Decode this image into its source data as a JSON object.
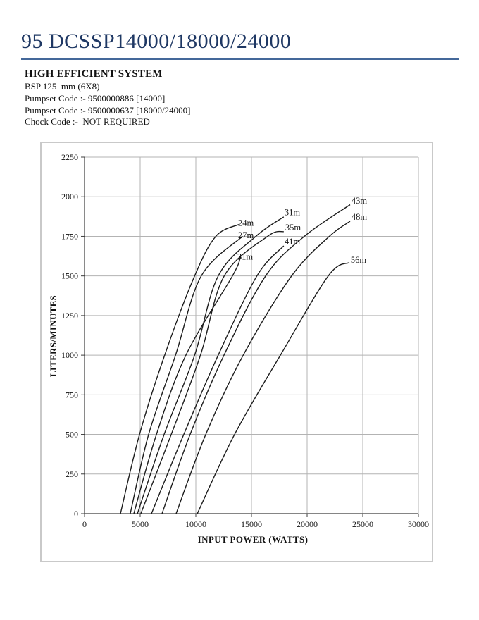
{
  "page": {
    "title": "95 DCSSP14000/18000/24000",
    "title_color": "#1f3864",
    "rule_color": "#44689a",
    "subtitle_heading": "HIGH EFFICIENT SYSTEM",
    "spec_lines": [
      "BSP 125  mm (6X8)",
      "Pumpset Code :- 9500000886 [14000]",
      "Pumpset Code :- 9500000637 [18000/24000]",
      "Chock Code :-  NOT REQUIRED"
    ]
  },
  "chart_data": {
    "type": "line",
    "title": "",
    "xlabel": "INPUT POWER (WATTS)",
    "ylabel": "LITERS/MINUTES",
    "xlim": [
      0,
      30000
    ],
    "ylim": [
      0,
      2250
    ],
    "x_ticks": [
      0,
      5000,
      10000,
      15000,
      20000,
      25000,
      30000
    ],
    "y_ticks": [
      0,
      250,
      500,
      750,
      1000,
      1250,
      1500,
      1750,
      2000,
      2250
    ],
    "grid": true,
    "legend": "none",
    "line_color": "#1c1c1c",
    "grid_color": "#b3b3b3",
    "axis_color": "#3c3c3c",
    "series": [
      {
        "name": "24m",
        "label_at": [
          14500,
          1835
        ],
        "points": [
          [
            3230,
            0
          ],
          [
            4940,
            500
          ],
          [
            7200,
            1000
          ],
          [
            9890,
            1500
          ],
          [
            11800,
            1750
          ],
          [
            13860,
            1825
          ]
        ]
      },
      {
        "name": "27m",
        "label_at": [
          14500,
          1757
        ],
        "points": [
          [
            4110,
            0
          ],
          [
            5760,
            500
          ],
          [
            8180,
            1000
          ],
          [
            10490,
            1500
          ],
          [
            14200,
            1750
          ]
        ]
      },
      {
        "name": "31m",
        "label_at": [
          14430,
          1620
        ],
        "points": [
          [
            4430,
            0
          ],
          [
            6460,
            500
          ],
          [
            9110,
            1000
          ],
          [
            13290,
            1500
          ],
          [
            14000,
            1620
          ]
        ]
      },
      {
        "name": "31m",
        "label_at": [
          18670,
          1900
        ],
        "points": [
          [
            4750,
            0
          ],
          [
            7150,
            500
          ],
          [
            9890,
            1000
          ],
          [
            12010,
            1500
          ],
          [
            15400,
            1750
          ],
          [
            17900,
            1873
          ]
        ]
      },
      {
        "name": "35m",
        "label_at": [
          18730,
          1806
        ],
        "points": [
          [
            5060,
            0
          ],
          [
            7790,
            500
          ],
          [
            10420,
            1000
          ],
          [
            12550,
            1500
          ],
          [
            16450,
            1750
          ],
          [
            17900,
            1780
          ]
        ]
      },
      {
        "name": "41m",
        "label_at": [
          18670,
          1717
        ],
        "points": [
          [
            6010,
            0
          ],
          [
            8920,
            500
          ],
          [
            12010,
            1000
          ],
          [
            15490,
            1500
          ],
          [
            17900,
            1690
          ]
        ]
      },
      {
        "name": "43m",
        "label_at": [
          24680,
          1975
        ],
        "points": [
          [
            6960,
            0
          ],
          [
            9490,
            500
          ],
          [
            12530,
            1000
          ],
          [
            16270,
            1500
          ],
          [
            19750,
            1750
          ],
          [
            23860,
            1950
          ]
        ]
      },
      {
        "name": "48m",
        "label_at": [
          24680,
          1873
        ],
        "points": [
          [
            8230,
            0
          ],
          [
            10890,
            500
          ],
          [
            14260,
            1000
          ],
          [
            18600,
            1500
          ],
          [
            22000,
            1750
          ],
          [
            23860,
            1845
          ]
        ]
      },
      {
        "name": "56m",
        "label_at": [
          24620,
          1600
        ],
        "points": [
          [
            10130,
            0
          ],
          [
            13480,
            500
          ],
          [
            17600,
            1000
          ],
          [
            21900,
            1500
          ],
          [
            23800,
            1585
          ]
        ]
      }
    ]
  }
}
